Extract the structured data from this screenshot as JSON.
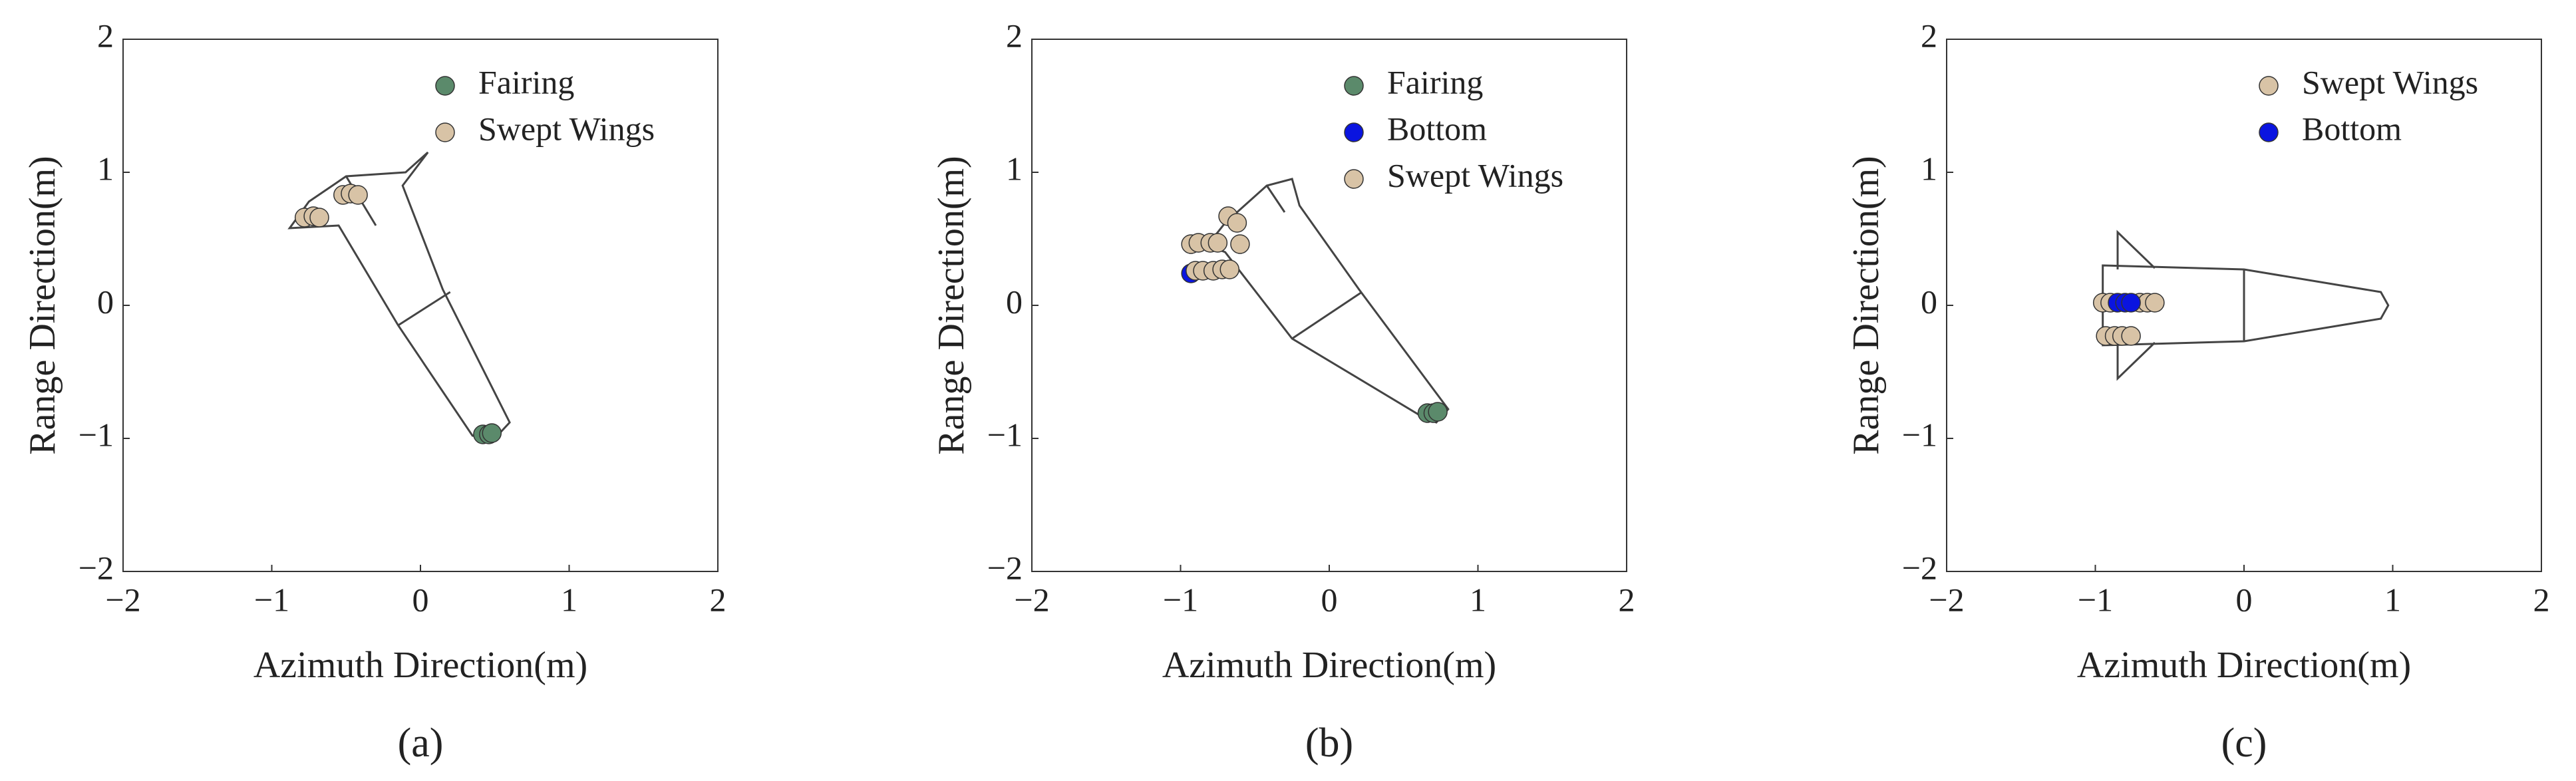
{
  "chart_data": [
    {
      "type": "scatter",
      "caption": "(a)",
      "xlabel": "Azimuth Direction(m)",
      "ylabel": "Range Direction(m)",
      "xlim": [
        -2,
        2
      ],
      "ylim": [
        -2,
        2
      ],
      "xticks": [
        {
          "value": -2,
          "label": "−2"
        },
        {
          "value": -1,
          "label": "−1"
        },
        0,
        1,
        2
      ],
      "yticks": [
        {
          "value": -2,
          "label": "−2"
        },
        {
          "value": -1,
          "label": "−1"
        },
        0,
        1,
        2
      ],
      "legend": "upper right",
      "series": [
        {
          "name": "Fairing",
          "color": "#5b8a6b",
          "x": [
            0.42,
            0.46,
            0.48
          ],
          "y": [
            -0.97,
            -0.97,
            -0.96
          ]
        },
        {
          "name": "Swept Wings",
          "color": "#d8c3a6",
          "x": [
            -0.78,
            -0.72,
            -0.68,
            -0.52,
            -0.47,
            -0.42
          ],
          "y": [
            0.66,
            0.67,
            0.66,
            0.83,
            0.84,
            0.83
          ]
        }
      ]
    },
    {
      "type": "scatter",
      "caption": "(b)",
      "xlabel": "Azimuth Direction(m)",
      "ylabel": "Range Direction(m)",
      "xlim": [
        -2,
        2
      ],
      "ylim": [
        -2,
        2
      ],
      "xticks": [
        {
          "value": -2,
          "label": "−2"
        },
        {
          "value": -1,
          "label": "−1"
        },
        0,
        1,
        2
      ],
      "yticks": [
        {
          "value": -2,
          "label": "−2"
        },
        {
          "value": -1,
          "label": "−1"
        },
        0,
        1,
        2
      ],
      "legend": "upper right",
      "series": [
        {
          "name": "Fairing",
          "color": "#5b8a6b",
          "x": [
            0.66,
            0.7,
            0.73
          ],
          "y": [
            -0.81,
            -0.81,
            -0.8
          ]
        },
        {
          "name": "Bottom",
          "color": "#0a14e0",
          "x": [
            -0.93
          ],
          "y": [
            0.24
          ]
        },
        {
          "name": "Swept Wings",
          "color": "#d8c3a6",
          "x": [
            -0.93,
            -0.88,
            -0.8,
            -0.75,
            -0.68,
            -0.62,
            -0.6,
            -0.9,
            -0.85,
            -0.78,
            -0.72,
            -0.67
          ],
          "y": [
            0.46,
            0.47,
            0.47,
            0.47,
            0.67,
            0.62,
            0.46,
            0.26,
            0.26,
            0.26,
            0.27,
            0.27
          ]
        }
      ]
    },
    {
      "type": "scatter",
      "caption": "(c)",
      "xlabel": "Azimuth Direction(m)",
      "ylabel": "Range Direction(m)",
      "xlim": [
        -2,
        2
      ],
      "ylim": [
        -2,
        2
      ],
      "xticks": [
        {
          "value": -2,
          "label": "−2"
        },
        {
          "value": -1,
          "label": "−1"
        },
        0,
        1,
        2
      ],
      "yticks": [
        {
          "value": -2,
          "label": "−2"
        },
        {
          "value": -1,
          "label": "−1"
        },
        0,
        1,
        2
      ],
      "legend": "upper right",
      "series": [
        {
          "name": "Swept Wings",
          "color": "#d8c3a6",
          "x": [
            -0.95,
            -0.9,
            -0.7,
            -0.65,
            -0.6,
            -0.93,
            -0.87,
            -0.82,
            -0.76
          ],
          "y": [
            0.02,
            0.02,
            0.02,
            0.02,
            0.02,
            -0.23,
            -0.23,
            -0.23,
            -0.23
          ]
        },
        {
          "name": "Bottom",
          "color": "#0a14e0",
          "x": [
            -0.85,
            -0.8,
            -0.76
          ],
          "y": [
            0.02,
            0.02,
            0.02
          ]
        }
      ]
    }
  ]
}
